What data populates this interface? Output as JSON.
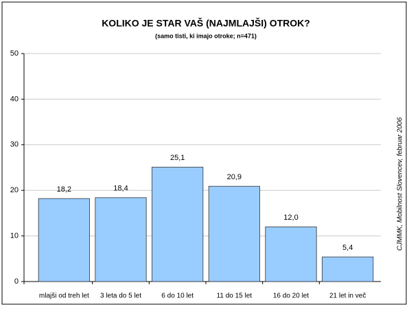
{
  "chart_data": {
    "type": "bar",
    "title": "KOLIKO JE STAR VAŠ (NAJMLAJŠI) OTROK?",
    "subtitle": "(samo tisti, ki imajo otroke; n=471)",
    "source": "CJMMK, Mobilnost Slovencev, februar 2006",
    "categories": [
      "mlajši od treh let",
      "3 leta do 5 let",
      "6 do 10 let",
      "11 do 15 let",
      "16 do 20 let",
      "21 let in več"
    ],
    "values": [
      18.2,
      18.4,
      25.1,
      20.9,
      12.0,
      5.4
    ],
    "value_labels": [
      "18,2",
      "18,4",
      "25,1",
      "20,9",
      "12,0",
      "5,4"
    ],
    "color": "#99ccff",
    "ylim": [
      0,
      50
    ],
    "yticks": [
      0,
      10,
      20,
      30,
      40,
      50
    ],
    "grid": true
  }
}
